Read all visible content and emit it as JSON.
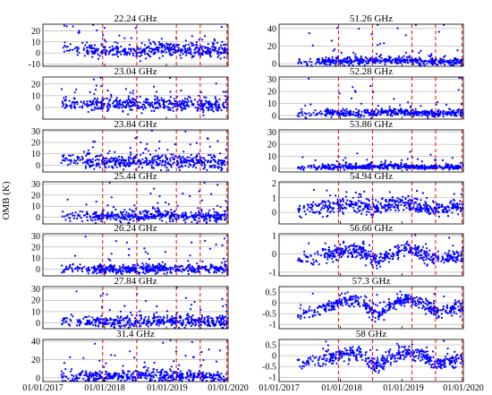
{
  "figure": {
    "ylabel": "OMB (K)",
    "x_tick_labels": [
      "01/01/2017",
      "01/01/2018",
      "01/01/2019",
      "01/01/2020"
    ]
  },
  "colors": {
    "points": "#0000ff",
    "event_lines": "#ff0000",
    "grid": "#999999",
    "axis": "#000000"
  },
  "chart_data": [
    {
      "type": "scatter",
      "title": "22.24 GHz",
      "ylim": [
        -12,
        26
      ],
      "yticks": [
        -10,
        0,
        10,
        20
      ],
      "xlim": [
        "2017-01-01",
        "2020-01-01"
      ],
      "grid": "horizontal",
      "event_dates": [
        "2017-12-20",
        "2018-07-10",
        "2019-03-01",
        "2019-07-20",
        "2019-12-25"
      ],
      "series": [
        {
          "values": [
            [
              "2017-05-01",
              5
            ],
            [
              "2017-06-01",
              3
            ],
            [
              "2017-08-01",
              4
            ],
            [
              "2017-10-01",
              2
            ],
            [
              "2018-01-01",
              3
            ],
            [
              "2018-04-01",
              2
            ],
            [
              "2018-07-01",
              1
            ],
            [
              "2018-10-01",
              3
            ],
            [
              "2019-01-01",
              4
            ],
            [
              "2019-04-01",
              2
            ],
            [
              "2019-07-01",
              2
            ],
            [
              "2019-10-01",
              2
            ],
            [
              "2019-12-01",
              2
            ]
          ]
        }
      ],
      "spread": 3,
      "outlier_max": 22
    },
    {
      "type": "scatter",
      "title": "51.26 GHz",
      "ylim": [
        -3,
        45
      ],
      "yticks": [
        0,
        20,
        40
      ],
      "xlim": [
        "2017-01-01",
        "2020-01-01"
      ],
      "grid": "horizontal",
      "event_dates": [
        "2017-12-20",
        "2018-07-10",
        "2019-03-01",
        "2019-07-20",
        "2019-12-25"
      ],
      "series": [
        {
          "values": [
            [
              "2017-05-01",
              1
            ],
            [
              "2017-09-01",
              3
            ],
            [
              "2018-01-01",
              3
            ],
            [
              "2018-06-01",
              3
            ],
            [
              "2018-11-01",
              4
            ],
            [
              "2019-04-01",
              3
            ],
            [
              "2019-08-01",
              3
            ],
            [
              "2019-12-01",
              2
            ]
          ]
        }
      ],
      "spread": 2,
      "outlier_max": 40
    },
    {
      "type": "scatter",
      "title": "23.04 GHz",
      "ylim": [
        -10,
        26
      ],
      "yticks": [
        0,
        10,
        20
      ],
      "xlim": [
        "2017-01-01",
        "2020-01-01"
      ],
      "grid": "horizontal",
      "event_dates": [
        "2017-12-20",
        "2018-07-10",
        "2019-03-01",
        "2019-07-20",
        "2019-12-25"
      ],
      "series": [
        {
          "values": [
            [
              "2017-05-01",
              4
            ],
            [
              "2017-08-01",
              3
            ],
            [
              "2017-11-01",
              2
            ],
            [
              "2018-03-01",
              3
            ],
            [
              "2018-07-01",
              2
            ],
            [
              "2018-11-01",
              3
            ],
            [
              "2019-03-01",
              3
            ],
            [
              "2019-07-01",
              2
            ],
            [
              "2019-12-01",
              2
            ]
          ]
        }
      ],
      "spread": 3,
      "outlier_max": 22
    },
    {
      "type": "scatter",
      "title": "52.28 GHz",
      "ylim": [
        -3,
        32
      ],
      "yticks": [
        0,
        10,
        20,
        30
      ],
      "xlim": [
        "2017-01-01",
        "2020-01-01"
      ],
      "grid": "horizontal",
      "event_dates": [
        "2017-12-20",
        "2018-07-10",
        "2019-03-01",
        "2019-07-20",
        "2019-12-25"
      ],
      "series": [
        {
          "values": [
            [
              "2017-05-01",
              1
            ],
            [
              "2017-09-01",
              2
            ],
            [
              "2018-01-01",
              2
            ],
            [
              "2018-06-01",
              2
            ],
            [
              "2018-11-01",
              3
            ],
            [
              "2019-04-01",
              2
            ],
            [
              "2019-08-01",
              2
            ],
            [
              "2019-12-01",
              2
            ]
          ]
        }
      ],
      "spread": 1.5,
      "outlier_max": 28
    },
    {
      "type": "scatter",
      "title": "23.84 GHz",
      "ylim": [
        -6,
        31
      ],
      "yticks": [
        0,
        10,
        20,
        30
      ],
      "xlim": [
        "2017-01-01",
        "2020-01-01"
      ],
      "grid": "horizontal",
      "event_dates": [
        "2017-12-20",
        "2018-07-10",
        "2019-03-01",
        "2019-07-20",
        "2019-12-25"
      ],
      "series": [
        {
          "values": [
            [
              "2017-05-01",
              5
            ],
            [
              "2017-09-01",
              3
            ],
            [
              "2018-01-01",
              3
            ],
            [
              "2018-06-01",
              3
            ],
            [
              "2018-11-01",
              3
            ],
            [
              "2019-04-01",
              3
            ],
            [
              "2019-08-01",
              3
            ],
            [
              "2019-12-01",
              2
            ]
          ]
        }
      ],
      "spread": 3,
      "outlier_max": 26
    },
    {
      "type": "scatter",
      "title": "53.86 GHz",
      "ylim": [
        -3,
        32
      ],
      "yticks": [
        0,
        10,
        20,
        30
      ],
      "xlim": [
        "2017-01-01",
        "2020-01-01"
      ],
      "grid": "horizontal",
      "event_dates": [
        "2017-12-20",
        "2018-07-10",
        "2019-03-01",
        "2019-07-20",
        "2019-12-25"
      ],
      "series": [
        {
          "values": [
            [
              "2017-05-01",
              1
            ],
            [
              "2017-09-01",
              1
            ],
            [
              "2018-01-01",
              1
            ],
            [
              "2018-06-01",
              1
            ],
            [
              "2018-11-01",
              2
            ],
            [
              "2019-04-01",
              1
            ],
            [
              "2019-08-01",
              1
            ],
            [
              "2019-12-01",
              1
            ]
          ]
        }
      ],
      "spread": 1,
      "outlier_max": 12
    },
    {
      "type": "scatter",
      "title": "25.44 GHz",
      "ylim": [
        -6,
        32
      ],
      "yticks": [
        0,
        10,
        20,
        30
      ],
      "xlim": [
        "2017-01-01",
        "2020-01-01"
      ],
      "grid": "horizontal",
      "event_dates": [
        "2017-12-20",
        "2018-07-10",
        "2019-03-01",
        "2019-07-20",
        "2019-12-25"
      ],
      "series": [
        {
          "values": [
            [
              "2017-05-01",
              2
            ],
            [
              "2017-09-01",
              1
            ],
            [
              "2018-01-01",
              1
            ],
            [
              "2018-06-01",
              1
            ],
            [
              "2018-11-01",
              2
            ],
            [
              "2019-04-01",
              1
            ],
            [
              "2019-08-01",
              1
            ],
            [
              "2019-12-01",
              1
            ]
          ]
        }
      ],
      "spread": 2.5,
      "outlier_max": 28
    },
    {
      "type": "scatter",
      "title": "54.94 GHz",
      "ylim": [
        -0.8,
        2.1
      ],
      "yticks": [
        0,
        1,
        2
      ],
      "xlim": [
        "2017-01-01",
        "2020-01-01"
      ],
      "grid": "horizontal",
      "event_dates": [
        "2017-12-20",
        "2018-07-10",
        "2019-03-01",
        "2019-07-20",
        "2019-12-25"
      ],
      "series": [
        {
          "values": [
            [
              "2017-05-01",
              0.2
            ],
            [
              "2017-08-01",
              0.3
            ],
            [
              "2017-11-01",
              0.4
            ],
            [
              "2018-02-01",
              0.5
            ],
            [
              "2018-05-01",
              0.6
            ],
            [
              "2018-08-01",
              0.1
            ],
            [
              "2018-11-01",
              0.6
            ],
            [
              "2019-02-01",
              0.7
            ],
            [
              "2019-05-01",
              0.3
            ],
            [
              "2019-08-01",
              0.2
            ],
            [
              "2019-12-01",
              0.4
            ]
          ]
        }
      ],
      "spread": 0.25,
      "outlier_max": 1.6
    },
    {
      "type": "scatter",
      "title": "26.24 GHz",
      "ylim": [
        -6,
        32
      ],
      "yticks": [
        0,
        10,
        20,
        30
      ],
      "xlim": [
        "2017-01-01",
        "2020-01-01"
      ],
      "grid": "horizontal",
      "event_dates": [
        "2017-12-20",
        "2018-07-10",
        "2019-03-01",
        "2019-07-20",
        "2019-12-25"
      ],
      "series": [
        {
          "values": [
            [
              "2017-05-01",
              1
            ],
            [
              "2017-09-01",
              0
            ],
            [
              "2018-01-01",
              0
            ],
            [
              "2018-06-01",
              0
            ],
            [
              "2018-11-01",
              1
            ],
            [
              "2019-04-01",
              0
            ],
            [
              "2019-08-01",
              0
            ],
            [
              "2019-12-01",
              0
            ]
          ]
        }
      ],
      "spread": 2,
      "outlier_max": 26
    },
    {
      "type": "scatter",
      "title": "56.66 GHz",
      "ylim": [
        -1.2,
        1.1
      ],
      "yticks": [
        -1,
        0,
        1
      ],
      "xlim": [
        "2017-01-01",
        "2020-01-01"
      ],
      "grid": "horizontal",
      "event_dates": [
        "2017-12-20",
        "2018-07-10",
        "2019-03-01",
        "2019-07-20",
        "2019-12-25"
      ],
      "series": [
        {
          "values": [
            [
              "2017-05-01",
              -0.3
            ],
            [
              "2017-08-01",
              -0.2
            ],
            [
              "2017-11-01",
              0.0
            ],
            [
              "2018-02-01",
              0.1
            ],
            [
              "2018-05-01",
              0.2
            ],
            [
              "2018-08-01",
              -0.5
            ],
            [
              "2018-11-01",
              0.0
            ],
            [
              "2019-02-01",
              0.3
            ],
            [
              "2019-05-01",
              0.0
            ],
            [
              "2019-08-01",
              -0.3
            ],
            [
              "2019-12-01",
              -0.1
            ]
          ]
        }
      ],
      "spread": 0.2,
      "outlier_max": 0.8
    },
    {
      "type": "scatter",
      "title": "27.84 GHz",
      "ylim": [
        -5,
        32
      ],
      "yticks": [
        0,
        10,
        20,
        30
      ],
      "xlim": [
        "2017-01-01",
        "2020-01-01"
      ],
      "grid": "horizontal",
      "event_dates": [
        "2017-12-20",
        "2018-07-10",
        "2019-03-01",
        "2019-07-20",
        "2019-12-25"
      ],
      "series": [
        {
          "values": [
            [
              "2017-05-01",
              2
            ],
            [
              "2017-09-01",
              1
            ],
            [
              "2018-01-01",
              1
            ],
            [
              "2018-06-01",
              1
            ],
            [
              "2018-11-01",
              2
            ],
            [
              "2019-04-01",
              1
            ],
            [
              "2019-08-01",
              1
            ],
            [
              "2019-12-01",
              1
            ]
          ]
        }
      ],
      "spread": 2.5,
      "outlier_max": 26
    },
    {
      "type": "scatter",
      "title": "57.3 GHz",
      "ylim": [
        -1.2,
        0.75
      ],
      "yticks": [
        -1,
        -0.5,
        0,
        0.5
      ],
      "xlim": [
        "2017-01-01",
        "2020-01-01"
      ],
      "grid": "horizontal",
      "event_dates": [
        "2017-12-20",
        "2018-07-10",
        "2019-03-01",
        "2019-07-20",
        "2019-12-25"
      ],
      "series": [
        {
          "values": [
            [
              "2017-05-01",
              -0.5
            ],
            [
              "2017-08-01",
              -0.4
            ],
            [
              "2017-11-01",
              -0.1
            ],
            [
              "2018-02-01",
              0.1
            ],
            [
              "2018-05-01",
              0.1
            ],
            [
              "2018-08-01",
              -0.6
            ],
            [
              "2018-11-01",
              -0.1
            ],
            [
              "2019-02-01",
              0.2
            ],
            [
              "2019-05-01",
              0.0
            ],
            [
              "2019-08-01",
              -0.4
            ],
            [
              "2019-12-01",
              -0.2
            ]
          ]
        }
      ],
      "spread": 0.15,
      "outlier_max": 0.4
    },
    {
      "type": "scatter",
      "title": "31.4 GHz",
      "ylim": [
        -4,
        42
      ],
      "yticks": [
        0,
        20,
        40
      ],
      "xlim": [
        "2017-01-01",
        "2020-01-01"
      ],
      "grid": "horizontal",
      "event_dates": [
        "2017-12-20",
        "2018-07-10",
        "2019-03-01",
        "2019-07-20",
        "2019-12-25"
      ],
      "series": [
        {
          "values": [
            [
              "2017-05-01",
              2
            ],
            [
              "2017-09-01",
              1
            ],
            [
              "2018-01-01",
              2
            ],
            [
              "2018-06-01",
              2
            ],
            [
              "2018-11-01",
              3
            ],
            [
              "2019-04-01",
              2
            ],
            [
              "2019-08-01",
              2
            ],
            [
              "2019-12-01",
              1
            ]
          ]
        }
      ],
      "spread": 3,
      "outlier_max": 36
    },
    {
      "type": "scatter",
      "title": "58 GHz",
      "ylim": [
        -1.2,
        0.75
      ],
      "yticks": [
        -1,
        -0.5,
        0,
        0.5
      ],
      "xlim": [
        "2017-01-01",
        "2020-01-01"
      ],
      "grid": "horizontal",
      "event_dates": [
        "2017-12-20",
        "2018-07-10",
        "2019-03-01",
        "2019-07-20",
        "2019-12-25"
      ],
      "series": [
        {
          "values": [
            [
              "2017-05-01",
              -0.4
            ],
            [
              "2017-08-01",
              -0.3
            ],
            [
              "2017-11-01",
              -0.1
            ],
            [
              "2018-02-01",
              0.1
            ],
            [
              "2018-05-01",
              0.1
            ],
            [
              "2018-08-01",
              -0.5
            ],
            [
              "2018-11-01",
              -0.1
            ],
            [
              "2019-02-01",
              0.2
            ],
            [
              "2019-05-01",
              0.0
            ],
            [
              "2019-08-01",
              -0.4
            ],
            [
              "2019-12-01",
              -0.2
            ]
          ]
        }
      ],
      "spread": 0.15,
      "outlier_max": 0.4
    }
  ]
}
